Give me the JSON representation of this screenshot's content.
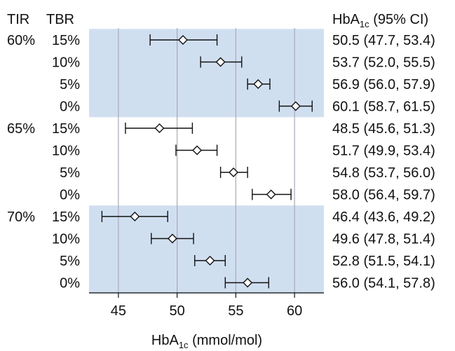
{
  "chart_data": {
    "type": "forest",
    "col_headers": {
      "tir": "TIR",
      "tbr": "TBR",
      "ci_main": "HbA",
      "ci_sub": "1c",
      "ci_rest": " (95% CI)"
    },
    "xlabel": {
      "main": "HbA",
      "sub": "1c",
      "rest": " (mmol/mol)"
    },
    "xlim": [
      42.5,
      62.5
    ],
    "xticks": [
      45,
      50,
      55,
      60
    ],
    "tick_labels": [
      "45",
      "50",
      "55",
      "60"
    ],
    "grid": "vertical",
    "band_color": "#d0dff0",
    "groups": [
      {
        "tir": "60%",
        "shaded": true,
        "rows": [
          {
            "tbr": "15%",
            "estimate": 50.5,
            "lower": 47.7,
            "upper": 53.4,
            "ci_text": "50.5 (47.7, 53.4)"
          },
          {
            "tbr": "10%",
            "estimate": 53.7,
            "lower": 52.0,
            "upper": 55.5,
            "ci_text": "53.7 (52.0, 55.5)"
          },
          {
            "tbr": "5%",
            "estimate": 56.9,
            "lower": 56.0,
            "upper": 57.9,
            "ci_text": "56.9 (56.0, 57.9)"
          },
          {
            "tbr": "0%",
            "estimate": 60.1,
            "lower": 58.7,
            "upper": 61.5,
            "ci_text": "60.1 (58.7, 61.5)"
          }
        ]
      },
      {
        "tir": "65%",
        "shaded": false,
        "rows": [
          {
            "tbr": "15%",
            "estimate": 48.5,
            "lower": 45.6,
            "upper": 51.3,
            "ci_text": "48.5 (45.6, 51.3)"
          },
          {
            "tbr": "10%",
            "estimate": 51.7,
            "lower": 49.9,
            "upper": 53.4,
            "ci_text": "51.7 (49.9, 53.4)"
          },
          {
            "tbr": "5%",
            "estimate": 54.8,
            "lower": 53.7,
            "upper": 56.0,
            "ci_text": "54.8 (53.7, 56.0)"
          },
          {
            "tbr": "0%",
            "estimate": 58.0,
            "lower": 56.4,
            "upper": 59.7,
            "ci_text": "58.0 (56.4, 59.7)"
          }
        ]
      },
      {
        "tir": "70%",
        "shaded": true,
        "rows": [
          {
            "tbr": "15%",
            "estimate": 46.4,
            "lower": 43.6,
            "upper": 49.2,
            "ci_text": "46.4 (43.6, 49.2)"
          },
          {
            "tbr": "10%",
            "estimate": 49.6,
            "lower": 47.8,
            "upper": 51.4,
            "ci_text": "49.6 (47.8, 51.4)"
          },
          {
            "tbr": "5%",
            "estimate": 52.8,
            "lower": 51.5,
            "upper": 54.1,
            "ci_text": "52.8 (51.5, 54.1)"
          },
          {
            "tbr": "0%",
            "estimate": 56.0,
            "lower": 54.1,
            "upper": 57.8,
            "ci_text": "56.0 (54.1, 57.8)"
          }
        ]
      }
    ]
  }
}
